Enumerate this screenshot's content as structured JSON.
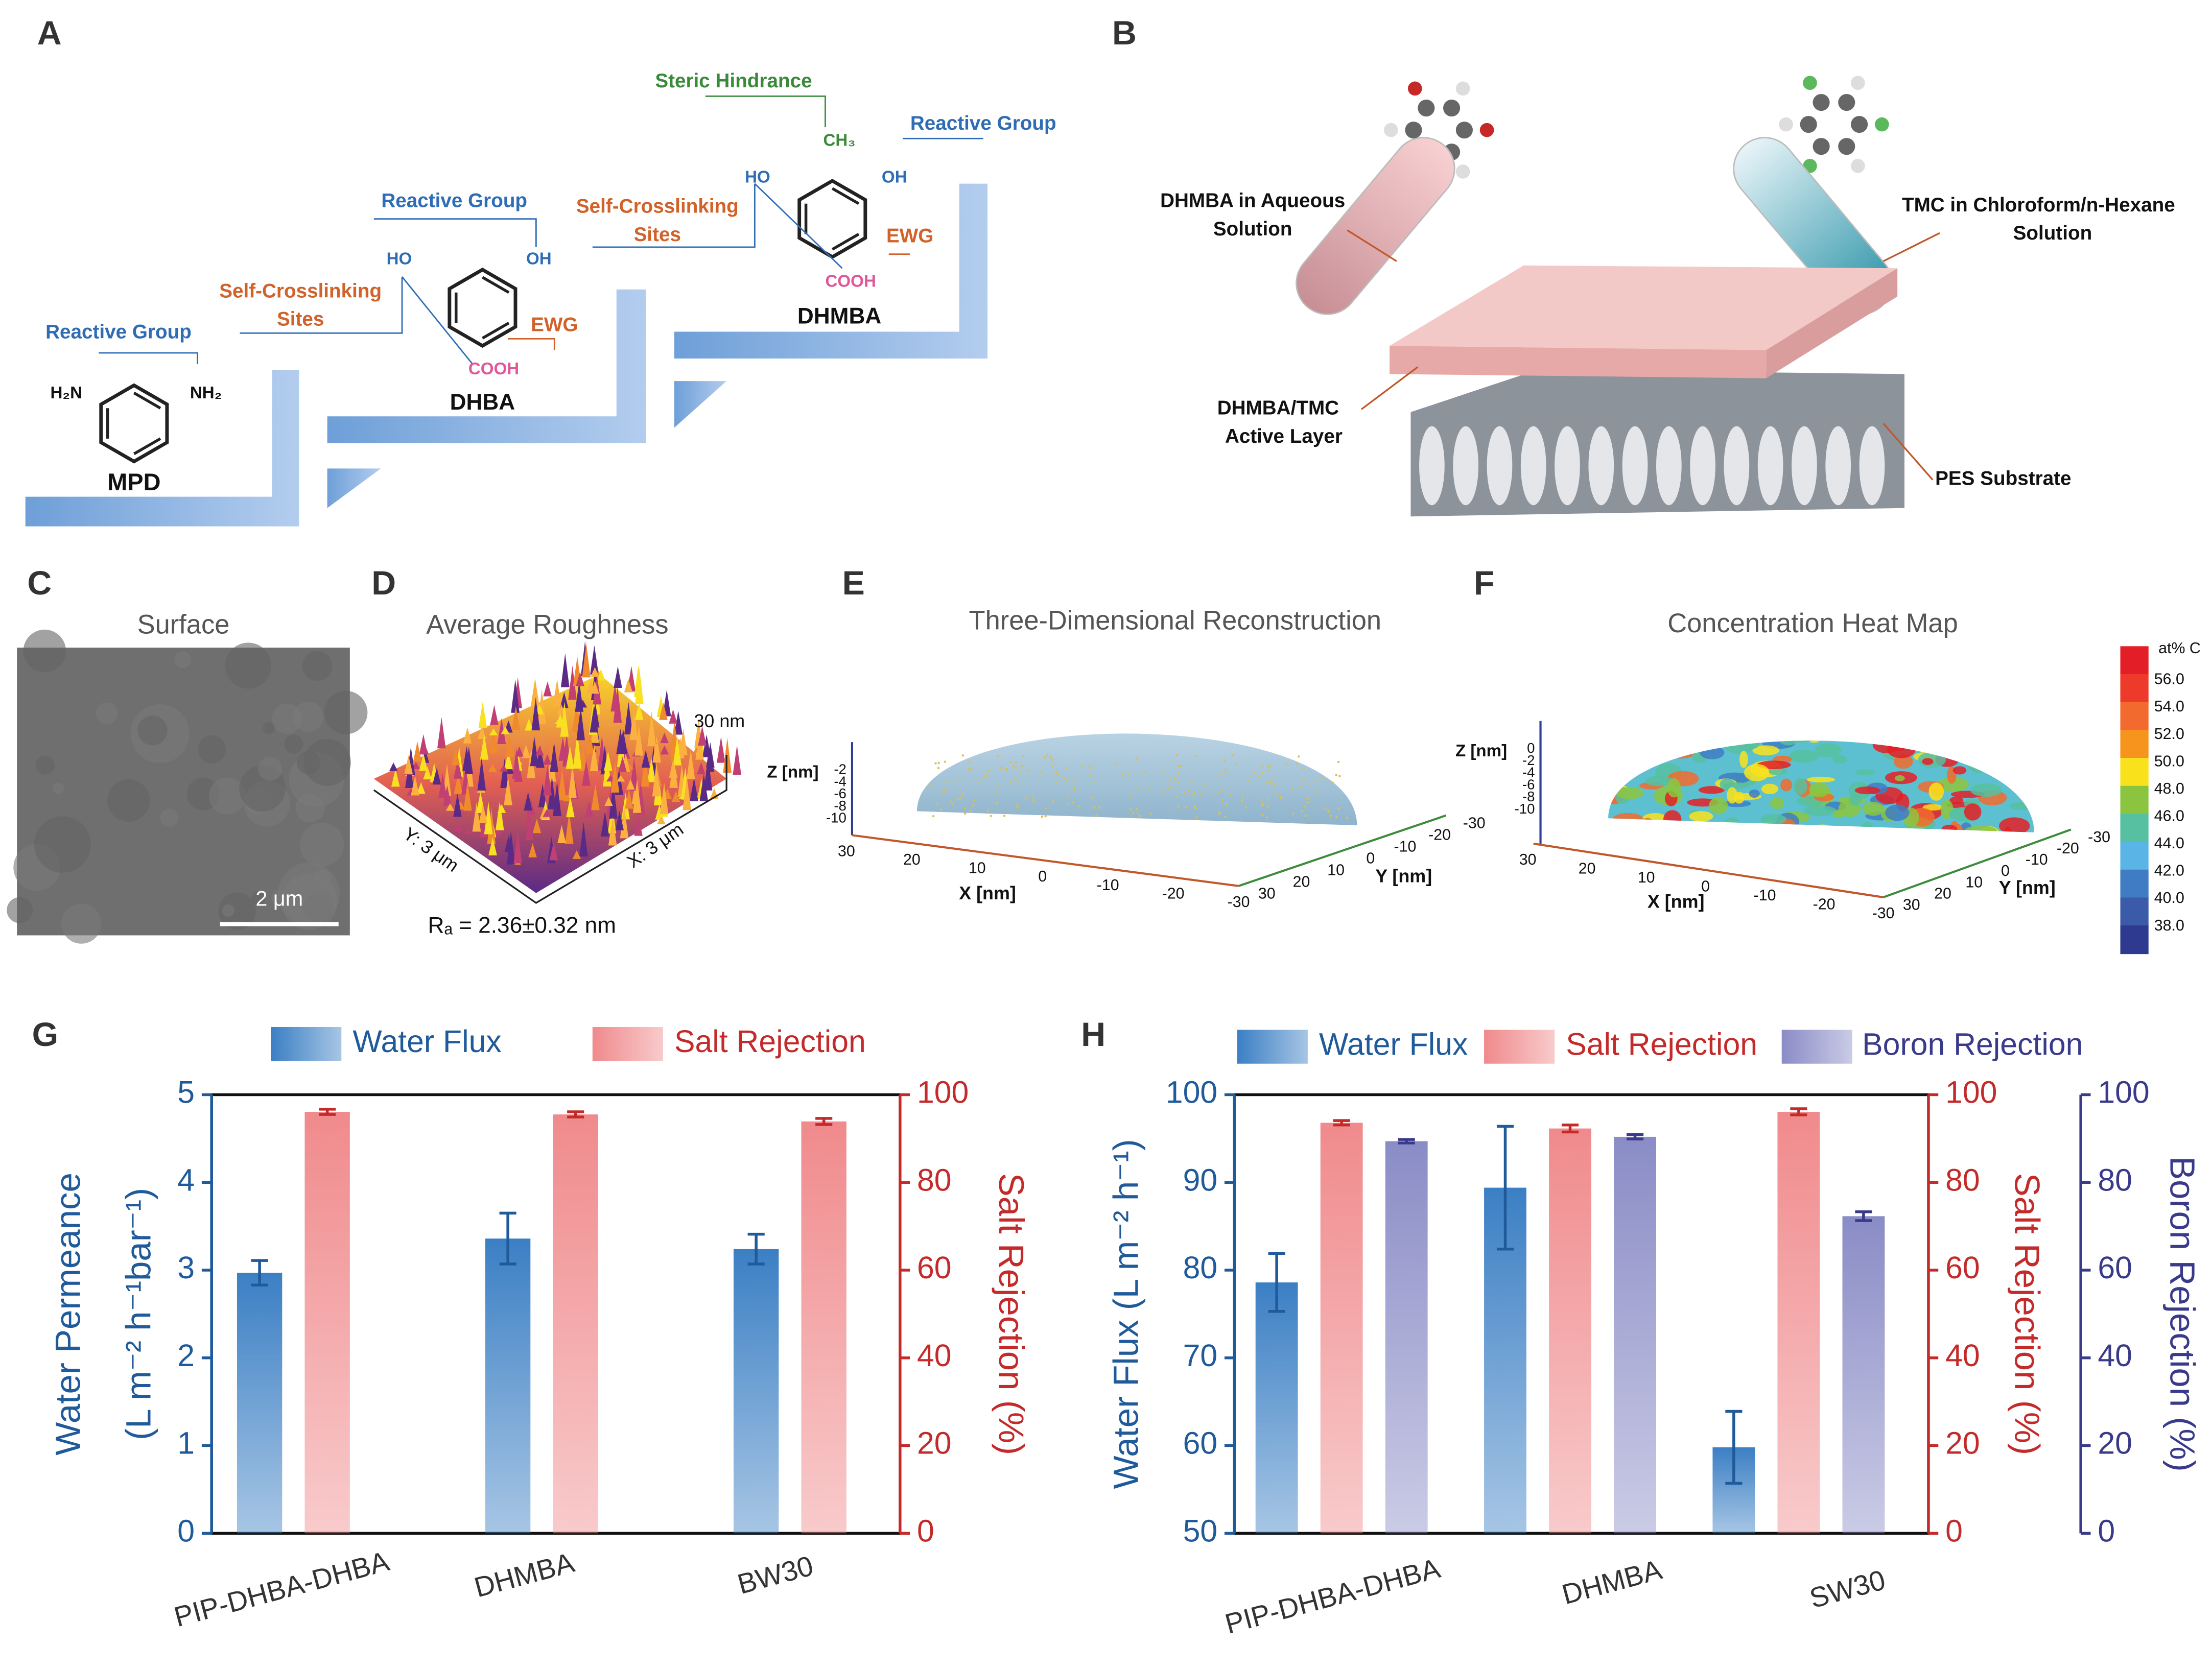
{
  "panels": {
    "A": {
      "label": "A",
      "texts": [
        "Steric Hindrance",
        "Reactive Group",
        "Reactive Group",
        "Reactive Group",
        "Self-Crosslinking",
        "Sites",
        "Self-Crosslinking",
        "Sites",
        "EWG",
        "EWG",
        "MPD",
        "DHBA",
        "DHMBA",
        "CH₃",
        "HO",
        "OH",
        "COOH",
        "HO",
        "OH",
        "COOH",
        "H₂N",
        "NH₂"
      ]
    },
    "B": {
      "label": "B",
      "texts": [
        "DHMBA in Aqueous",
        "Solution",
        "TMC in Chloroform/n-Hexane",
        "Solution",
        "DHMBA/TMC",
        "Active Layer",
        "PES Substrate"
      ]
    },
    "C": {
      "label": "C",
      "title": "Surface",
      "scale_bar": "2 μm"
    },
    "D": {
      "label": "D",
      "title": "Average Roughness",
      "z_range": "30 nm",
      "y_range": "Y: 3 μm",
      "x_range": "X: 3 μm",
      "roughness": "Rₐ = 2.36±0.32 nm"
    },
    "E": {
      "label": "E",
      "title": "Three-Dimensional Reconstruction",
      "z_title": "Z [nm]",
      "z_ticks": [
        "-2",
        "-4",
        "-6",
        "-8",
        "-10"
      ],
      "x_title": "X [nm]",
      "x_ticks": [
        "30",
        "20",
        "10",
        "0",
        "-10",
        "-20",
        "-30"
      ],
      "y_title": "Y [nm]",
      "y_ticks": [
        "30",
        "20",
        "10",
        "0",
        "-10",
        "-20",
        "-30"
      ]
    },
    "F": {
      "label": "F",
      "title": "Concentration Heat Map",
      "z_title": "Z [nm]",
      "z_ticks": [
        "0",
        "-2",
        "-4",
        "-6",
        "-8",
        "-10"
      ],
      "x_title": "X [nm]",
      "x_ticks": [
        "30",
        "20",
        "10",
        "0",
        "-10",
        "-20",
        "-30"
      ],
      "y_title": "Y [nm]",
      "y_ticks": [
        "30",
        "20",
        "10",
        "0",
        "-10",
        "-20",
        "-30"
      ],
      "colorbar_title": "at% C",
      "colorbar_labels": [
        "56.0",
        "54.0",
        "52.0",
        "50.0",
        "48.0",
        "46.0",
        "44.0",
        "42.0",
        "40.0",
        "38.0"
      ]
    }
  },
  "chart_data": [
    {
      "type": "bar",
      "label": "G",
      "categories": [
        "PIP-DHBA-DHBA",
        "DHMBA",
        "BW30"
      ],
      "series": [
        {
          "name": "Water Flux",
          "color": "#3b7fc4",
          "values": [
            2.97,
            3.36,
            3.24
          ],
          "errors": [
            0.14,
            0.29,
            0.17
          ]
        },
        {
          "name": "Salt Rejection",
          "color": "#f08a8c",
          "values": [
            96.1,
            95.5,
            93.9
          ],
          "errors": [
            0.6,
            0.6,
            0.7
          ],
          "axis": "y2"
        }
      ],
      "ylabel": [
        "Water Permeance",
        "(L m⁻² h⁻¹bar⁻¹)"
      ],
      "y2label": "Salt Rejection (%)",
      "ylim": [
        0,
        5
      ],
      "yticks": [
        0,
        1,
        2,
        3,
        4,
        5
      ],
      "y2lim": [
        0,
        100
      ],
      "y2ticks": [
        0,
        20,
        40,
        60,
        80,
        100
      ]
    },
    {
      "type": "bar",
      "label": "H",
      "categories": [
        "PIP-DHBA-DHBA",
        "DHMBA",
        "SW30"
      ],
      "series": [
        {
          "name": "Water Flux",
          "color": "#3b7fc4",
          "values": [
            78.6,
            89.4,
            59.8
          ],
          "errors": [
            3.3,
            7.0,
            4.1
          ]
        },
        {
          "name": "Salt Rejection",
          "color": "#f08a8c",
          "values": [
            93.6,
            92.3,
            96.1
          ],
          "errors": [
            0.5,
            0.8,
            0.7
          ],
          "axis": "y2"
        },
        {
          "name": "Boron Rejection",
          "color": "#8a8cc6",
          "values": [
            89.4,
            90.4,
            72.3
          ],
          "errors": [
            0.4,
            0.5,
            1.0
          ],
          "axis": "y3"
        }
      ],
      "ylabel": "Water Flux (L m⁻² h⁻¹)",
      "y2label": "Salt Rejection (%)",
      "y3label": "Boron Rejection (%)",
      "ylim": [
        50,
        100
      ],
      "yticks": [
        50,
        60,
        70,
        80,
        90,
        100
      ],
      "y2lim": [
        0,
        100
      ],
      "y2ticks": [
        0,
        20,
        40,
        60,
        80,
        100
      ],
      "y3lim": [
        0,
        100
      ],
      "y3ticks": [
        0,
        20,
        40,
        60,
        80,
        100
      ]
    }
  ]
}
